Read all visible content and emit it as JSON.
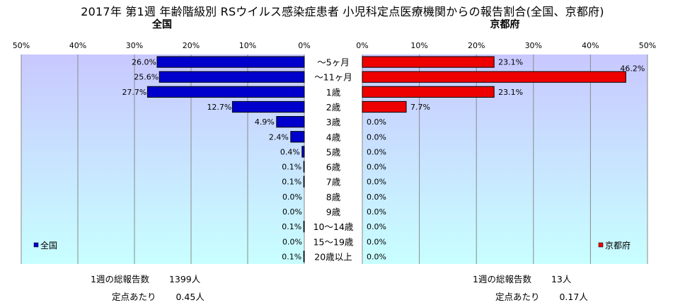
{
  "title": "2017年 第1週 年齢階級別 RSウイルス感染症患者 小児科定点医療機関からの報告割合(全国、京都府)",
  "colors": {
    "national_bar": "#0000cc",
    "kyoto_bar": "#ee0000",
    "plot_top": "#c8c8ff",
    "plot_bottom": "#c8ffff",
    "grid": "#8a8a8a"
  },
  "chart_data": [
    {
      "type": "bar",
      "orientation": "horizontal",
      "direction": "right-to-left",
      "title": "全国",
      "categories": [
        "〜5ヶ月",
        "〜11ヶ月",
        "1歳",
        "2歳",
        "3歳",
        "4歳",
        "5歳",
        "6歳",
        "7歳",
        "8歳",
        "9歳",
        "10〜14歳",
        "15〜19歳",
        "20歳以上"
      ],
      "series": [
        {
          "name": "全国",
          "values": [
            26.0,
            25.6,
            27.7,
            12.7,
            4.9,
            2.4,
            0.4,
            0.1,
            0.1,
            0.0,
            0.0,
            0.1,
            0.0,
            0.1
          ],
          "labels": [
            "26.0%",
            "25.6%",
            "27.7%",
            "12.7%",
            "4.9%",
            "2.4%",
            "0.4%",
            "0.1%",
            "0.1%",
            "0.0%",
            "0.0%",
            "0.1%",
            "0.0%",
            "0.1%"
          ]
        }
      ],
      "xlim": [
        0,
        50
      ],
      "xticks": [
        "50%",
        "40%",
        "30%",
        "20%",
        "10%",
        "0%"
      ],
      "legend": "bottom-left",
      "grid": true,
      "footer": [
        {
          "label": "1週の総報告数",
          "value": "1399人"
        },
        {
          "label": "定点あたり",
          "value": "0.45人"
        }
      ]
    },
    {
      "type": "bar",
      "orientation": "horizontal",
      "direction": "left-to-right",
      "title": "京都府",
      "categories": [
        "〜5ヶ月",
        "〜11ヶ月",
        "1歳",
        "2歳",
        "3歳",
        "4歳",
        "5歳",
        "6歳",
        "7歳",
        "8歳",
        "9歳",
        "10〜14歳",
        "15〜19歳",
        "20歳以上"
      ],
      "series": [
        {
          "name": "京都府",
          "values": [
            23.1,
            46.2,
            23.1,
            7.7,
            0.0,
            0.0,
            0.0,
            0.0,
            0.0,
            0.0,
            0.0,
            0.0,
            0.0,
            0.0
          ],
          "labels": [
            "23.1%",
            "46.2%",
            "23.1%",
            "7.7%",
            "0.0%",
            "0.0%",
            "0.0%",
            "0.0%",
            "0.0%",
            "0.0%",
            "0.0%",
            "0.0%",
            "0.0%",
            "0.0%"
          ]
        }
      ],
      "xlim": [
        0,
        50
      ],
      "xticks": [
        "0%",
        "10%",
        "20%",
        "30%",
        "40%",
        "50%"
      ],
      "legend": "bottom-right",
      "grid": true,
      "footer": [
        {
          "label": "1週の総報告数",
          "value": "13人"
        },
        {
          "label": "定点あたり",
          "value": "0.17人"
        }
      ]
    }
  ]
}
